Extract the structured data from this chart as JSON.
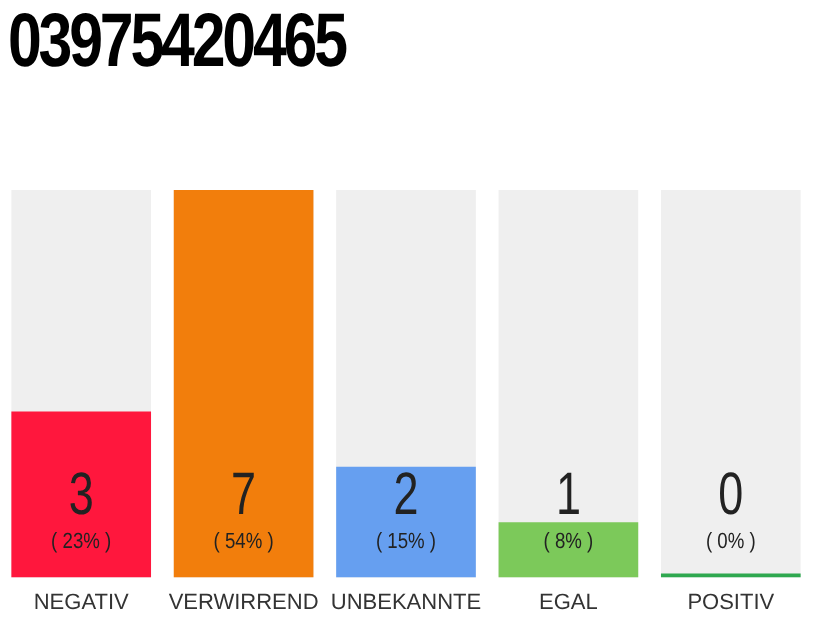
{
  "chart_data": {
    "type": "bar",
    "title": "03975420465",
    "categories": [
      "NEGATIV",
      "VERWIRREND",
      "UNBEKANNTE",
      "EGAL",
      "POSITIV"
    ],
    "values": [
      3,
      7,
      2,
      1,
      0
    ],
    "colors": [
      "#ff173d",
      "#f27e0c",
      "#669ff0",
      "#7cc95a",
      "#2ea84f"
    ],
    "tick_labels": "x",
    "value_labels": [
      "3",
      "7",
      "2",
      "1",
      "0"
    ],
    "annotations": [
      "( 23% )",
      "( 54% )",
      "( 15% )",
      "( 8% )",
      "( 0% )"
    ],
    "grid": false,
    "legend": false
  }
}
